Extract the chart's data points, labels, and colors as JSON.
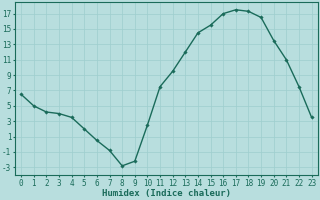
{
  "x": [
    0,
    1,
    2,
    3,
    4,
    5,
    6,
    7,
    8,
    9,
    10,
    11,
    12,
    13,
    14,
    15,
    16,
    17,
    18,
    19,
    20,
    21,
    22,
    23
  ],
  "y": [
    6.5,
    5.0,
    4.2,
    4.0,
    3.5,
    2.0,
    0.5,
    -0.8,
    -2.8,
    -2.2,
    2.5,
    7.5,
    9.5,
    12.0,
    14.5,
    15.5,
    17.0,
    17.5,
    17.3,
    16.5,
    13.5,
    11.0,
    7.5,
    3.5
  ],
  "line_color": "#1a6b5a",
  "marker": "D",
  "marker_size": 1.8,
  "bg_color": "#b8dede",
  "grid_color": "#9ecece",
  "xlabel": "Humidex (Indice chaleur)",
  "xlabel_fontsize": 6.5,
  "yticks": [
    -3,
    -1,
    1,
    3,
    5,
    7,
    9,
    11,
    13,
    15,
    17
  ],
  "xticks": [
    0,
    1,
    2,
    3,
    4,
    5,
    6,
    7,
    8,
    9,
    10,
    11,
    12,
    13,
    14,
    15,
    16,
    17,
    18,
    19,
    20,
    21,
    22,
    23
  ],
  "ylim": [
    -4,
    18.5
  ],
  "xlim": [
    -0.5,
    23.5
  ],
  "tick_fontsize": 5.5,
  "linewidth": 1.0
}
